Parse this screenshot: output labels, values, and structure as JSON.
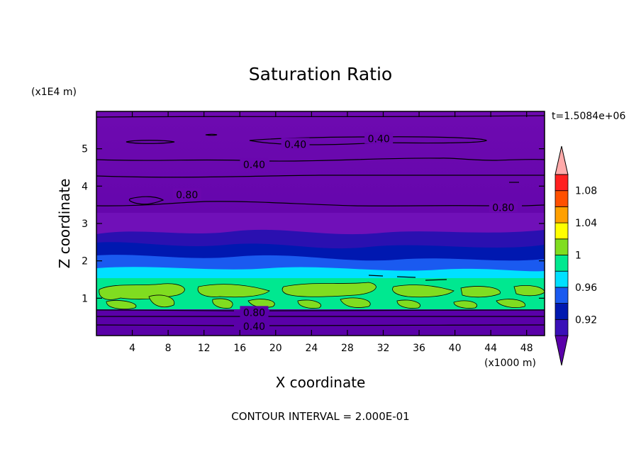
{
  "chart_data": {
    "type": "contour",
    "title": "Saturation Ratio",
    "xlabel": "X coordinate",
    "ylabel": "Z coordinate",
    "x_unit": "(x1000 m)",
    "y_unit": "(x1E4 m)",
    "time_label": "t=1.5084e+06",
    "footer": "CONTOUR INTERVAL = 2.000E-01",
    "xlim": [
      0,
      50
    ],
    "ylim": [
      0,
      6
    ],
    "x_ticks": [
      4,
      8,
      12,
      16,
      20,
      24,
      28,
      32,
      36,
      40,
      44,
      48
    ],
    "y_ticks": [
      1,
      2,
      3,
      4,
      5
    ],
    "x_tick_labels": [
      "4",
      "8",
      "12",
      "16",
      "20",
      "24",
      "28",
      "32",
      "36",
      "40",
      "44",
      "48"
    ],
    "y_tick_labels": [
      "1",
      "2",
      "3",
      "4",
      "5"
    ],
    "colorbar": {
      "levels": [
        0.92,
        0.94,
        0.96,
        0.98,
        1.0,
        1.02,
        1.04,
        1.06,
        1.08,
        1.1
      ],
      "labels": [
        "0.92",
        "0.96",
        "1",
        "1.04",
        "1.08"
      ],
      "colors": [
        "#5a00aa",
        "#3a10b8",
        "#0018b0",
        "#1a5af0",
        "#00e0ff",
        "#00e890",
        "#80dd20",
        "#ffff00",
        "#ffa000",
        "#ff5000",
        "#ff2020",
        "#ffaaaa"
      ]
    },
    "contour_labels": [
      {
        "text": "0.40",
        "x": 22.2,
        "z": 5.12
      },
      {
        "text": "0.40",
        "x": 31.5,
        "z": 5.27
      },
      {
        "text": "0.40",
        "x": 17.6,
        "z": 4.58
      },
      {
        "text": "0.80",
        "x": 10.1,
        "z": 3.77
      },
      {
        "text": "0.80",
        "x": 45.4,
        "z": 3.43
      },
      {
        "text": "0.80",
        "x": 17.6,
        "z": 0.62
      },
      {
        "text": "0.40",
        "x": 17.6,
        "z": 0.25
      }
    ]
  }
}
